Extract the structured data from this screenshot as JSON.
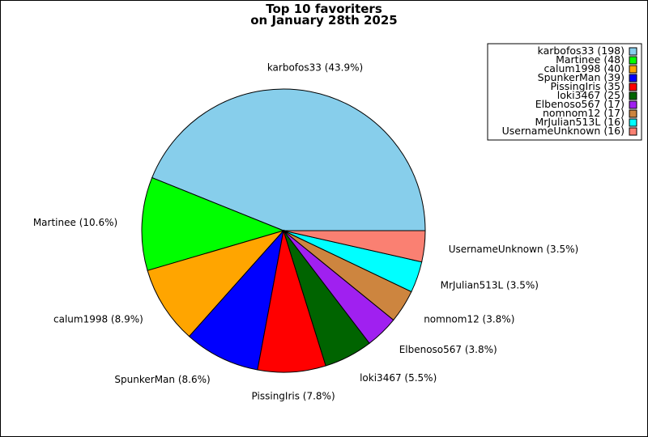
{
  "chart_data": {
    "type": "pie",
    "title_lines": [
      "Top 10 favoriters",
      "on January 28th 2025"
    ],
    "start_angle_deg": 0,
    "direction": "counterclockwise",
    "legend_position": "top-right",
    "slices": [
      {
        "name": "karbofos33",
        "value": 198,
        "label": "karbofos33 (43.9%)",
        "legend": "karbofos33 (198)",
        "color": "#87CEEB"
      },
      {
        "name": "Martinee",
        "value": 48,
        "label": "Martinee (10.6%)",
        "legend": "Martinee (48)",
        "color": "#00FF00"
      },
      {
        "name": "calum1998",
        "value": 40,
        "label": "calum1998 (8.9%)",
        "legend": "calum1998 (40)",
        "color": "#FFA500"
      },
      {
        "name": "SpunkerMan",
        "value": 39,
        "label": "SpunkerMan (8.6%)",
        "legend": "SpunkerMan (39)",
        "color": "#0000FF"
      },
      {
        "name": "PissingIris",
        "value": 35,
        "label": "PissingIris (7.8%)",
        "legend": "PissingIris (35)",
        "color": "#FF0000"
      },
      {
        "name": "loki3467",
        "value": 25,
        "label": "loki3467 (5.5%)",
        "legend": "loki3467 (25)",
        "color": "#006400"
      },
      {
        "name": "Elbenoso567",
        "value": 17,
        "label": "Elbenoso567 (3.8%)",
        "legend": "Elbenoso567 (17)",
        "color": "#A020F0"
      },
      {
        "name": "nomnom12",
        "value": 17,
        "label": "nomnom12 (3.8%)",
        "legend": "nomnom12 (17)",
        "color": "#CD853F"
      },
      {
        "name": "MrJulian513L",
        "value": 16,
        "label": "MrJulian513L (3.5%)",
        "legend": "MrJulian513L (16)",
        "color": "#00FFFF"
      },
      {
        "name": "UsernameUnknown",
        "value": 16,
        "label": "UsernameUnknown (3.5%)",
        "legend": "UsernameUnknown (16)",
        "color": "#FA8072"
      }
    ]
  }
}
